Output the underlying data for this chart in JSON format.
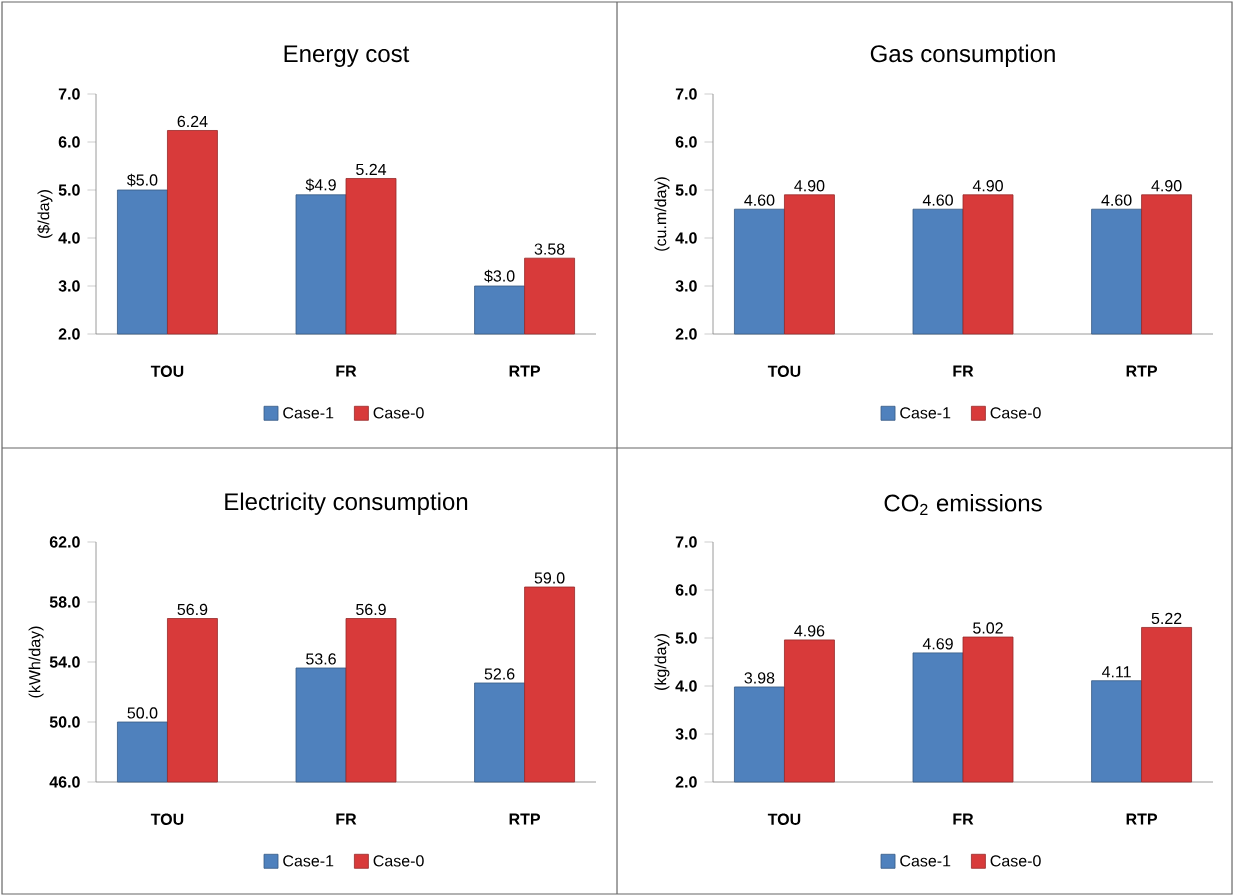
{
  "chart_data": [
    {
      "type": "bar",
      "title": "Energy cost",
      "ylabel": "($/day)",
      "categories": [
        "TOU",
        "FR",
        "RTP"
      ],
      "ylim": [
        2,
        7
      ],
      "yticks": [
        {
          "value": 2,
          "label": "2.0"
        },
        {
          "value": 3,
          "label": "3.0"
        },
        {
          "value": 4,
          "label": "4.0"
        },
        {
          "value": 5,
          "label": "5.0"
        },
        {
          "value": 6,
          "label": "6.0"
        },
        {
          "value": 7,
          "label": "7.0"
        }
      ],
      "legend": "bottom",
      "grid": false,
      "series": [
        {
          "name": "Case-1",
          "color": "#4f81bd",
          "values": [
            5.0,
            4.9,
            3.0
          ],
          "value_labels": [
            "$5.0",
            "$4.9",
            "$3.0"
          ]
        },
        {
          "name": "Case-0",
          "color": "#d83a3a",
          "values": [
            6.24,
            5.24,
            3.58
          ],
          "value_labels": [
            "6.24",
            "5.24",
            "3.58"
          ]
        }
      ]
    },
    {
      "type": "bar",
      "title": "Gas consumption",
      "ylabel": "(cu.m/day)",
      "categories": [
        "TOU",
        "FR",
        "RTP"
      ],
      "ylim": [
        2,
        7
      ],
      "yticks": [
        {
          "value": 2,
          "label": "2.0"
        },
        {
          "value": 3,
          "label": "3.0"
        },
        {
          "value": 4,
          "label": "4.0"
        },
        {
          "value": 5,
          "label": "5.0"
        },
        {
          "value": 6,
          "label": "6.0"
        },
        {
          "value": 7,
          "label": "7.0"
        }
      ],
      "legend": "bottom",
      "grid": false,
      "series": [
        {
          "name": "Case-1",
          "color": "#4f81bd",
          "values": [
            4.6,
            4.6,
            4.6
          ],
          "value_labels": [
            "4.60",
            "4.60",
            "4.60"
          ]
        },
        {
          "name": "Case-0",
          "color": "#d83a3a",
          "values": [
            4.9,
            4.9,
            4.9
          ],
          "value_labels": [
            "4.90",
            "4.90",
            "4.90"
          ]
        }
      ]
    },
    {
      "type": "bar",
      "title": "Electricity consumption",
      "ylabel": "(kWh/day)",
      "categories": [
        "TOU",
        "FR",
        "RTP"
      ],
      "ylim": [
        46,
        62
      ],
      "yticks": [
        {
          "value": 46,
          "label": "46.0"
        },
        {
          "value": 50,
          "label": "50.0"
        },
        {
          "value": 54,
          "label": "54.0"
        },
        {
          "value": 58,
          "label": "58.0"
        },
        {
          "value": 62,
          "label": "62.0"
        }
      ],
      "legend": "bottom",
      "grid": false,
      "series": [
        {
          "name": "Case-1",
          "color": "#4f81bd",
          "values": [
            50.0,
            53.6,
            52.6
          ],
          "value_labels": [
            "50.0",
            "53.6",
            "52.6"
          ]
        },
        {
          "name": "Case-0",
          "color": "#d83a3a",
          "values": [
            56.9,
            56.9,
            59.0
          ],
          "value_labels": [
            "56.9",
            "56.9",
            "59.0"
          ]
        }
      ]
    },
    {
      "type": "bar",
      "title": "CO$_{2}$ emissions",
      "ylabel": "(kg/day)",
      "categories": [
        "TOU",
        "FR",
        "RTP"
      ],
      "ylim": [
        2,
        7
      ],
      "yticks": [
        {
          "value": 2,
          "label": "2.0"
        },
        {
          "value": 3,
          "label": "3.0"
        },
        {
          "value": 4,
          "label": "4.0"
        },
        {
          "value": 5,
          "label": "5.0"
        },
        {
          "value": 6,
          "label": "6.0"
        },
        {
          "value": 7,
          "label": "7.0"
        }
      ],
      "legend": "bottom",
      "grid": false,
      "series": [
        {
          "name": "Case-1",
          "color": "#4f81bd",
          "values": [
            3.98,
            4.69,
            4.11
          ],
          "value_labels": [
            "3.98",
            "4.69",
            "4.11"
          ]
        },
        {
          "name": "Case-0",
          "color": "#d83a3a",
          "values": [
            4.96,
            5.02,
            5.22
          ],
          "value_labels": [
            "4.96",
            "5.02",
            "5.22"
          ]
        }
      ]
    }
  ]
}
